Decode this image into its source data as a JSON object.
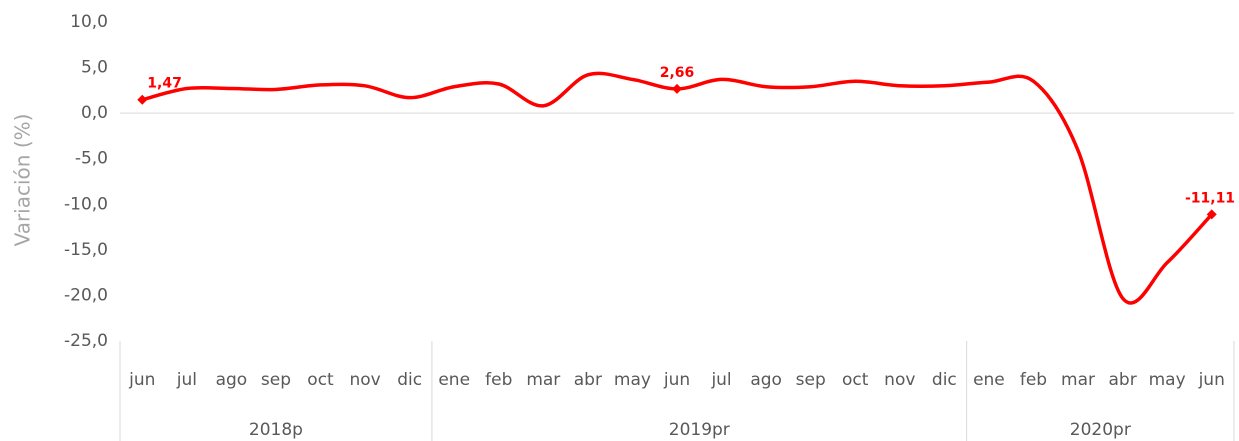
{
  "chart_data": {
    "type": "line",
    "y_label": "Variación (%)",
    "category_groups": [
      {
        "name": "2018p",
        "categories": [
          "jun",
          "jul",
          "ago",
          "sep",
          "oct",
          "nov",
          "dic"
        ]
      },
      {
        "name": "2019pr",
        "categories": [
          "ene",
          "feb",
          "mar",
          "abr",
          "may",
          "jun",
          "jul",
          "ago",
          "sep",
          "oct",
          "nov",
          "dic"
        ]
      },
      {
        "name": "2020pr",
        "categories": [
          "ene",
          "feb",
          "mar",
          "abr",
          "may",
          "jun"
        ]
      }
    ],
    "series": [
      {
        "name": "Variación",
        "color": "#ff0000",
        "values": [
          1.47,
          2.7,
          2.7,
          2.6,
          3.1,
          3.0,
          1.7,
          2.9,
          3.2,
          0.8,
          4.2,
          3.7,
          2.66,
          3.7,
          2.9,
          2.9,
          3.5,
          3.0,
          3.0,
          3.4,
          3.5,
          -4.1,
          -20.3,
          -16.4,
          -11.11
        ],
        "value_labels": [
          "1,47",
          null,
          null,
          null,
          null,
          null,
          null,
          null,
          null,
          null,
          null,
          null,
          "2,66",
          null,
          null,
          null,
          null,
          null,
          null,
          null,
          null,
          null,
          null,
          null,
          "-11,11"
        ]
      }
    ],
    "ylim": [
      -25,
      10
    ],
    "yticks": [
      {
        "value": -25,
        "label": "-25,0"
      },
      {
        "value": -20,
        "label": "-20,0"
      },
      {
        "value": -15,
        "label": "-15,0"
      },
      {
        "value": -10,
        "label": "-10,0"
      },
      {
        "value": -5,
        "label": "-5,0"
      },
      {
        "value": 0,
        "label": "0,0"
      },
      {
        "value": 5,
        "label": "5,0"
      },
      {
        "value": 10,
        "label": "10,0"
      }
    ],
    "smooth": true,
    "grid": false
  }
}
